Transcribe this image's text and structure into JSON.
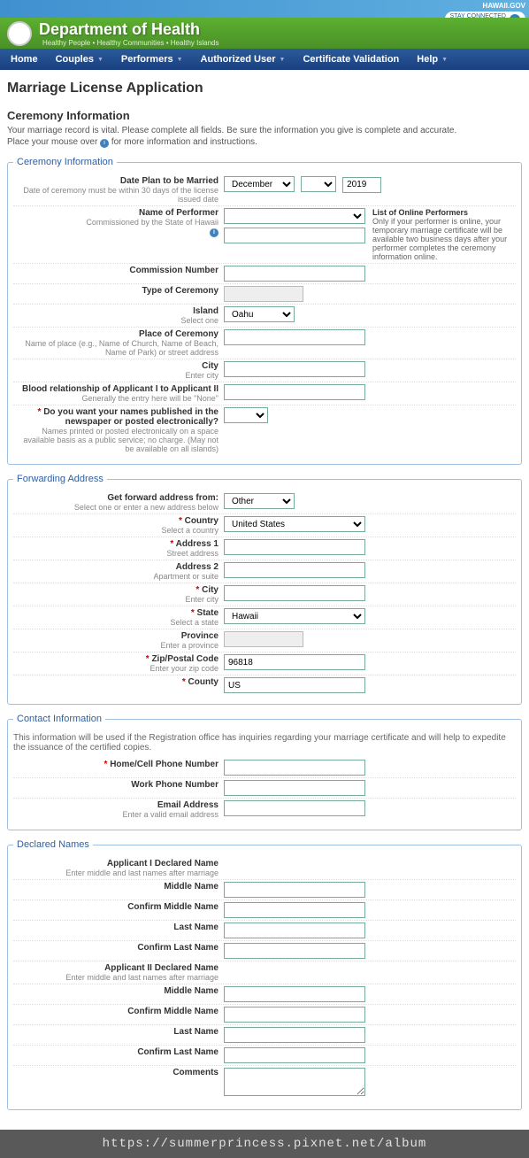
{
  "header": {
    "dept": "Department of Health",
    "tagline": "Healthy People • Healthy Communities • Healthy Islands",
    "gov": "HAWAII.GOV",
    "stay": "STAY CONNECTED",
    "stay_sub": "to Hawai'i State Government"
  },
  "nav": {
    "items": [
      "Home",
      "Couples",
      "Performers",
      "Authorized User",
      "Certificate Validation",
      "Help"
    ],
    "has_dropdown": [
      false,
      true,
      true,
      true,
      false,
      true
    ]
  },
  "page": {
    "title": "Marriage License Application",
    "section": "Ceremony Information",
    "intro1": "Your marriage record is vital. Please complete all fields. Be sure the information you give is complete and accurate.",
    "intro2_a": "Place your mouse over ",
    "intro2_b": " for more information and instructions."
  },
  "ceremony": {
    "legend": "Ceremony Information",
    "date_label": "Date Plan to be Married",
    "date_hint": "Date of ceremony must be within 30 days of the license issued date",
    "date_month": "December",
    "date_day": "",
    "date_year": "2019",
    "performer_label": "Name of Performer",
    "performer_hint": "Commissioned by the State of Hawaii",
    "performer_side_title": "List of Online Performers",
    "performer_side_text": "Only if your performer is online, your temporary marriage certificate will be available two business days after your performer completes the ceremony information online.",
    "commission_label": "Commission Number",
    "type_label": "Type of Ceremony",
    "island_label": "Island",
    "island_hint": "Select one",
    "island_value": "Oahu",
    "place_label": "Place of Ceremony",
    "place_hint": "Name of place (e.g., Name of Church, Name of Beach, Name of Park) or street address",
    "city_label": "City",
    "city_hint": "Enter city",
    "blood_label": "Blood relationship of Applicant I to Applicant II",
    "blood_hint": "Generally the entry here will be \"None\"",
    "publish_label": "Do you want your names published in the newspaper or posted electronically?",
    "publish_hint": "Names printed or posted electronically on a space available basis as a public service; no charge. (May not be available on all islands)"
  },
  "forward": {
    "legend": "Forwarding Address",
    "from_label": "Get forward address from:",
    "from_hint": "Select one or enter a new address below",
    "from_value": "Other",
    "country_label": "Country",
    "country_hint": "Select a country",
    "country_value": "United States",
    "addr1_label": "Address 1",
    "addr1_hint": "Street address",
    "addr2_label": "Address 2",
    "addr2_hint": "Apartment or suite",
    "city_label": "City",
    "city_hint": "Enter city",
    "state_label": "State",
    "state_hint": "Select a state",
    "state_value": "Hawaii",
    "province_label": "Province",
    "province_hint": "Enter a province",
    "zip_label": "Zip/Postal Code",
    "zip_hint": "Enter your zip code",
    "zip_value": "96818",
    "county_label": "County",
    "county_value": "US"
  },
  "contact": {
    "legend": "Contact Information",
    "intro": "This information will be used if the Registration office has inquiries regarding your marriage certificate and will help to expedite the issuance of the certified copies.",
    "home_label": "Home/Cell Phone Number",
    "work_label": "Work Phone Number",
    "email_label": "Email Address",
    "email_hint": "Enter a valid email address"
  },
  "declared": {
    "legend": "Declared Names",
    "app1_label": "Applicant I Declared Name",
    "app_hint": "Enter middle and last names after marriage",
    "middle": "Middle Name",
    "conf_middle": "Confirm Middle Name",
    "last": "Last Name",
    "conf_last": "Confirm Last Name",
    "app2_label": "Applicant II Declared Name",
    "comments": "Comments"
  },
  "url": "https://summerprincess.pixnet.net/album"
}
